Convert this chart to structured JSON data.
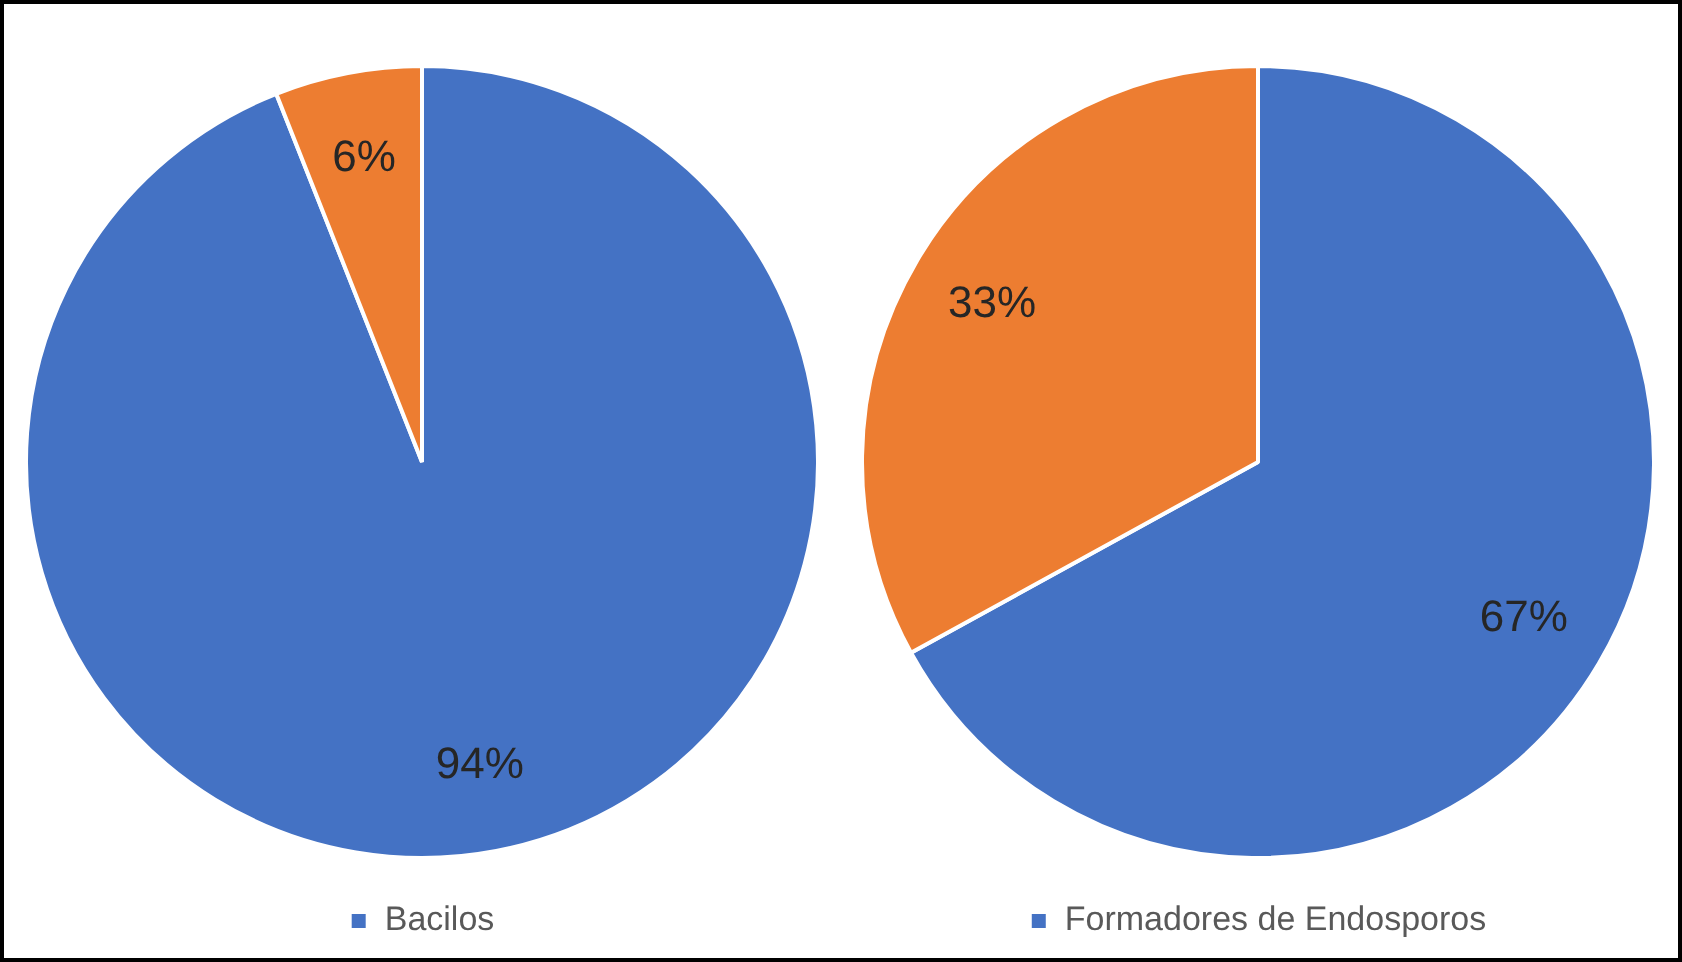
{
  "chart_data": [
    {
      "type": "pie",
      "categories": [
        "Bacilos",
        null
      ],
      "values": [
        94,
        6
      ],
      "colors": [
        "#4472c4",
        "#ed7d31"
      ],
      "value_labels": [
        "94%",
        "6%"
      ],
      "legend": "bottom"
    },
    {
      "type": "pie",
      "categories": [
        "Formadores de Endosporos",
        null
      ],
      "values": [
        67,
        33
      ],
      "colors": [
        "#4472c4",
        "#ed7d31"
      ],
      "value_labels": [
        "67%",
        "33%"
      ],
      "legend": "bottom"
    }
  ]
}
